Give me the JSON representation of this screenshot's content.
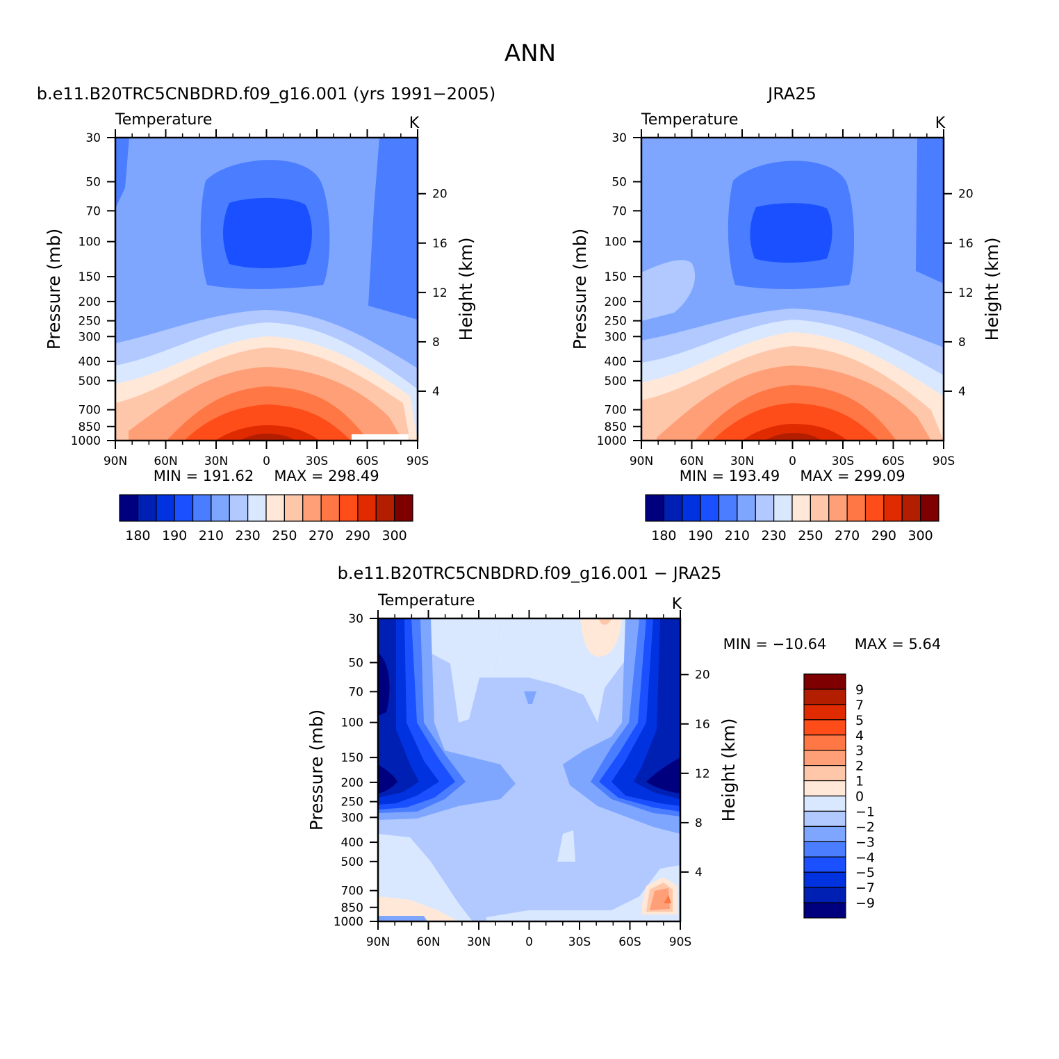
{
  "page_title": "ANN",
  "chart_data": [
    {
      "type": "heatmap",
      "title": "b.e11.B20TRC5CNBDRD.f09_g16.001 (yrs 1991−2005)",
      "variable": "Temperature",
      "units": "K",
      "ylabel": "Pressure (mb)",
      "y2label": "Height (km)",
      "xticks": [
        "90N",
        "60N",
        "30N",
        "0",
        "30S",
        "60S",
        "90S"
      ],
      "xvalues": [
        90,
        60,
        30,
        0,
        -30,
        -60,
        -90
      ],
      "yticks": [
        "30",
        "50",
        "70",
        "100",
        "150",
        "200",
        "250",
        "300",
        "400",
        "500",
        "700",
        "850",
        "1000"
      ],
      "y2ticks": [
        "20",
        "16",
        "12",
        "8",
        "4"
      ],
      "y_log_scale": true,
      "ylim": [
        1000,
        30
      ],
      "min_label": "MIN = 191.62",
      "max_label": "MAX = 298.49",
      "min": 191.62,
      "max": 298.49,
      "colorbar_labels": [
        "180",
        "190",
        "210",
        "230",
        "250",
        "270",
        "290",
        "300"
      ]
    },
    {
      "type": "heatmap",
      "title": "JRA25",
      "variable": "Temperature",
      "units": "K",
      "ylabel": "Pressure (mb)",
      "y2label": "Height (km)",
      "xticks": [
        "90N",
        "60N",
        "30N",
        "0",
        "30S",
        "60S",
        "90S"
      ],
      "xvalues": [
        90,
        60,
        30,
        0,
        -30,
        -60,
        -90
      ],
      "yticks": [
        "30",
        "50",
        "70",
        "100",
        "150",
        "200",
        "250",
        "300",
        "400",
        "500",
        "700",
        "850",
        "1000"
      ],
      "y2ticks": [
        "20",
        "16",
        "12",
        "8",
        "4"
      ],
      "y_log_scale": true,
      "ylim": [
        1000,
        30
      ],
      "min_label": "MIN = 193.49",
      "max_label": "MAX = 299.09",
      "min": 193.49,
      "max": 299.09,
      "colorbar_labels": [
        "180",
        "190",
        "210",
        "230",
        "250",
        "270",
        "290",
        "300"
      ]
    },
    {
      "type": "heatmap",
      "title": "b.e11.B20TRC5CNBDRD.f09_g16.001 − JRA25",
      "variable": "Temperature",
      "units": "K",
      "ylabel": "Pressure (mb)",
      "y2label": "Height (km)",
      "xticks": [
        "90N",
        "60N",
        "30N",
        "0",
        "30S",
        "60S",
        "90S"
      ],
      "xvalues": [
        90,
        60,
        30,
        0,
        -30,
        -60,
        -90
      ],
      "yticks": [
        "30",
        "50",
        "70",
        "100",
        "150",
        "200",
        "250",
        "300",
        "400",
        "500",
        "700",
        "850",
        "1000"
      ],
      "y2ticks": [
        "20",
        "16",
        "12",
        "8",
        "4"
      ],
      "y_log_scale": true,
      "ylim": [
        1000,
        30
      ],
      "min_label": "MIN = −10.64",
      "max_label": "MAX = 5.64",
      "min": -10.64,
      "max": 5.64,
      "colorbar_labels": [
        "9",
        "7",
        "5",
        "4",
        "3",
        "2",
        "1",
        "0",
        "−1",
        "−2",
        "−3",
        "−4",
        "−5",
        "−7",
        "−9"
      ]
    }
  ],
  "colors": {
    "temperature_scale": [
      "#00007f",
      "#0020b4",
      "#0032e0",
      "#1a50ff",
      "#4a7dff",
      "#7fa6ff",
      "#b2c9ff",
      "#d9e8ff",
      "#ffe8d8",
      "#ffc7aa",
      "#ff9f77",
      "#ff7744",
      "#ff4d1a",
      "#e02a00",
      "#b41e00",
      "#7f0000"
    ],
    "difference_scale": [
      "#7f0000",
      "#b41e00",
      "#e02a00",
      "#ff4d1a",
      "#ff7744",
      "#ff9f77",
      "#ffc7aa",
      "#ffe8d8",
      "#d9e8ff",
      "#b2c9ff",
      "#7fa6ff",
      "#4a7dff",
      "#1a50ff",
      "#0032e0",
      "#0020b4",
      "#00007f"
    ]
  }
}
